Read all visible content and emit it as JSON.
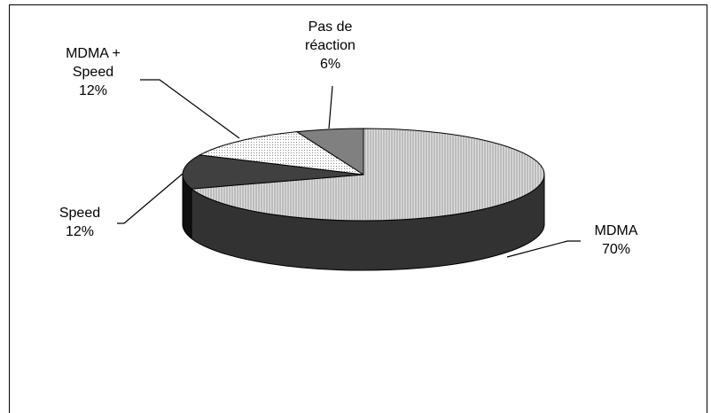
{
  "chart_data": {
    "type": "pie",
    "categories": [
      "MDMA",
      "Speed",
      "MDMA + Speed",
      "Pas de réaction"
    ],
    "values": [
      70,
      12,
      12,
      6
    ],
    "value_labels": [
      "70%",
      "12%",
      "12%",
      "6%"
    ],
    "colors": [
      "#c8c8c8",
      "#404040",
      "#f2f2f2",
      "#808080"
    ]
  }
}
